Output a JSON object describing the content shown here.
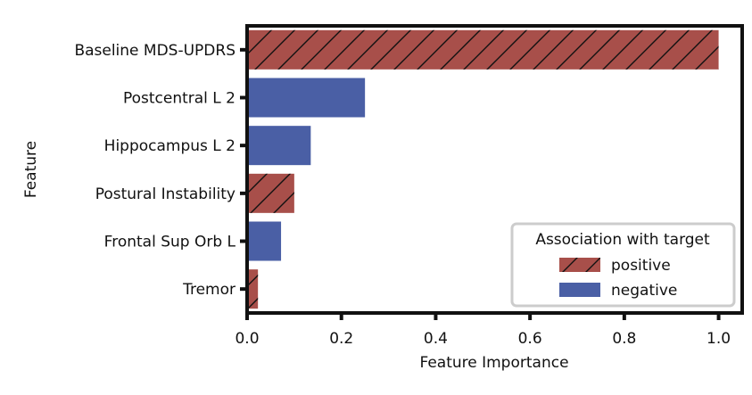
{
  "chart_data": {
    "type": "bar",
    "orientation": "horizontal",
    "title": "",
    "xlabel": "Feature Importance",
    "ylabel": "Feature",
    "xlim": [
      0,
      1.05
    ],
    "xticks": [
      0.0,
      0.2,
      0.4,
      0.6,
      0.8,
      1.0
    ],
    "xtick_labels": [
      "0.0",
      "0.2",
      "0.4",
      "0.6",
      "0.8",
      "1.0"
    ],
    "grid": false,
    "categories": [
      "Baseline MDS-UPDRS",
      "Postcentral L 2",
      "Hippocampus L 2",
      "Postural Instability",
      "Frontal Sup Orb L",
      "Tremor"
    ],
    "values": [
      1.0,
      0.25,
      0.135,
      0.1,
      0.072,
      0.023
    ],
    "association": [
      "positive",
      "negative",
      "negative",
      "positive",
      "negative",
      "positive"
    ],
    "colors": {
      "positive": "#a84f4a",
      "negative": "#4a5fa5"
    },
    "legend": {
      "title": "Association with target",
      "placement": "lower-right",
      "entries": [
        {
          "key": "positive",
          "label": "positive"
        },
        {
          "key": "negative",
          "label": "negative"
        }
      ]
    }
  }
}
